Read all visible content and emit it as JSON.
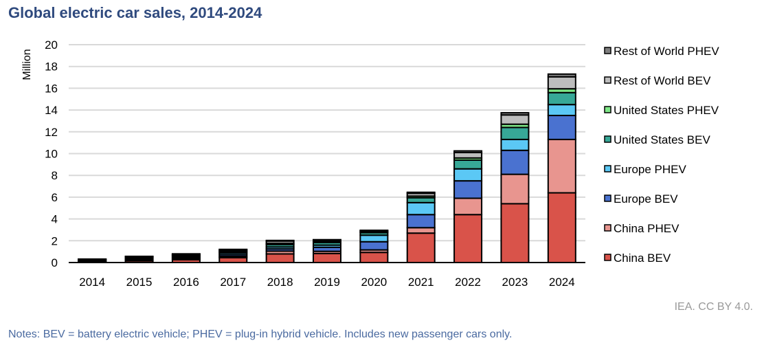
{
  "title": "Global electric car sales, 2014-2024",
  "notes": "Notes: BEV = battery electric vehicle; PHEV = plug-in hybrid vehicle. Includes new passenger cars only.",
  "credit": "IEA. CC BY 4.0.",
  "chart_data": {
    "type": "bar",
    "stacked": true,
    "title": "Global electric car sales, 2014-2024",
    "ylabel": "Million",
    "xlabel": "",
    "ylim": [
      0,
      20
    ],
    "yticks": [
      0,
      2,
      4,
      6,
      8,
      10,
      12,
      14,
      16,
      18,
      20
    ],
    "grid": true,
    "legend_position": "right",
    "categories": [
      "2014",
      "2015",
      "2016",
      "2017",
      "2018",
      "2019",
      "2020",
      "2021",
      "2022",
      "2023",
      "2024"
    ],
    "series": [
      {
        "name": "China BEV",
        "color": "#d9534a",
        "values": [
          0.05,
          0.15,
          0.26,
          0.45,
          0.79,
          0.83,
          0.93,
          2.7,
          4.4,
          5.4,
          6.4
        ]
      },
      {
        "name": "China PHEV",
        "color": "#e8958f",
        "values": [
          0.02,
          0.06,
          0.08,
          0.13,
          0.26,
          0.2,
          0.23,
          0.5,
          1.5,
          2.7,
          4.9
        ]
      },
      {
        "name": "Europe BEV",
        "color": "#4a72d0",
        "values": [
          0.05,
          0.1,
          0.1,
          0.15,
          0.2,
          0.37,
          0.75,
          1.2,
          1.6,
          2.2,
          2.2
        ]
      },
      {
        "name": "Europe PHEV",
        "color": "#5bc8f5",
        "values": [
          0.05,
          0.09,
          0.1,
          0.15,
          0.18,
          0.2,
          0.6,
          1.1,
          1.1,
          1.0,
          1.0
        ]
      },
      {
        "name": "United States BEV",
        "color": "#37a897",
        "values": [
          0.07,
          0.07,
          0.08,
          0.1,
          0.22,
          0.24,
          0.23,
          0.45,
          0.8,
          1.1,
          1.1
        ]
      },
      {
        "name": "United States PHEV",
        "color": "#7ee787",
        "values": [
          0.05,
          0.04,
          0.07,
          0.09,
          0.12,
          0.09,
          0.07,
          0.15,
          0.2,
          0.3,
          0.35
        ]
      },
      {
        "name": "Rest of World BEV",
        "color": "#bdbdbd",
        "values": [
          0.02,
          0.04,
          0.07,
          0.1,
          0.2,
          0.12,
          0.1,
          0.25,
          0.5,
          0.85,
          1.1
        ]
      },
      {
        "name": "Rest of World PHEV",
        "color": "#7f7f7f",
        "values": [
          0.01,
          0.02,
          0.04,
          0.04,
          0.06,
          0.05,
          0.05,
          0.1,
          0.15,
          0.2,
          0.25
        ]
      }
    ]
  }
}
